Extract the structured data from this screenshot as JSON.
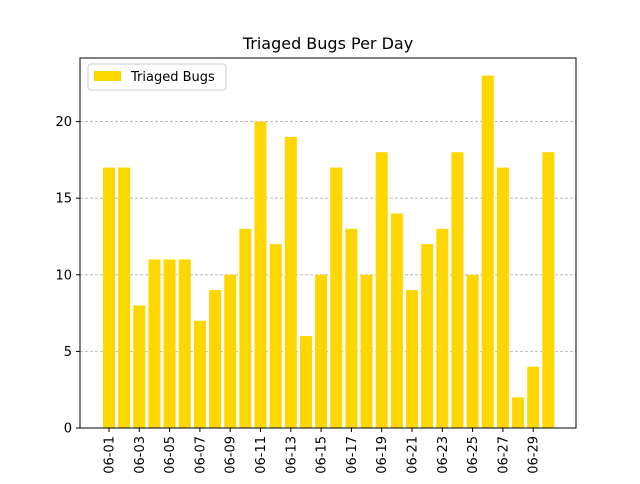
{
  "chart_data": {
    "type": "bar",
    "title": "Triaged Bugs Per Day",
    "xlabel": "",
    "ylabel": "",
    "categories": [
      "06-01",
      "06-02",
      "06-03",
      "06-04",
      "06-05",
      "06-06",
      "06-07",
      "06-08",
      "06-09",
      "06-10",
      "06-11",
      "06-12",
      "06-13",
      "06-14",
      "06-15",
      "06-16",
      "06-17",
      "06-18",
      "06-19",
      "06-20",
      "06-21",
      "06-22",
      "06-23",
      "06-24",
      "06-25",
      "06-26",
      "06-27",
      "06-28",
      "06-29",
      "06-30"
    ],
    "tick_labels": [
      "06-01",
      "06-03",
      "06-05",
      "06-07",
      "06-09",
      "06-11",
      "06-13",
      "06-15",
      "06-17",
      "06-19",
      "06-21",
      "06-23",
      "06-25",
      "06-27",
      "06-29"
    ],
    "series": [
      {
        "name": "Triaged Bugs",
        "values": [
          17,
          17,
          8,
          11,
          11,
          11,
          7,
          9,
          10,
          13,
          20,
          12,
          19,
          6,
          10,
          17,
          13,
          10,
          18,
          14,
          9,
          12,
          13,
          18,
          10,
          23,
          17,
          2,
          4,
          18
        ],
        "color": "#FFD700"
      }
    ],
    "yticks": [
      0,
      5,
      10,
      15,
      20
    ],
    "ylim": [
      0,
      24.15
    ],
    "grid": "y-dashed",
    "legend_position": "upper-left"
  }
}
